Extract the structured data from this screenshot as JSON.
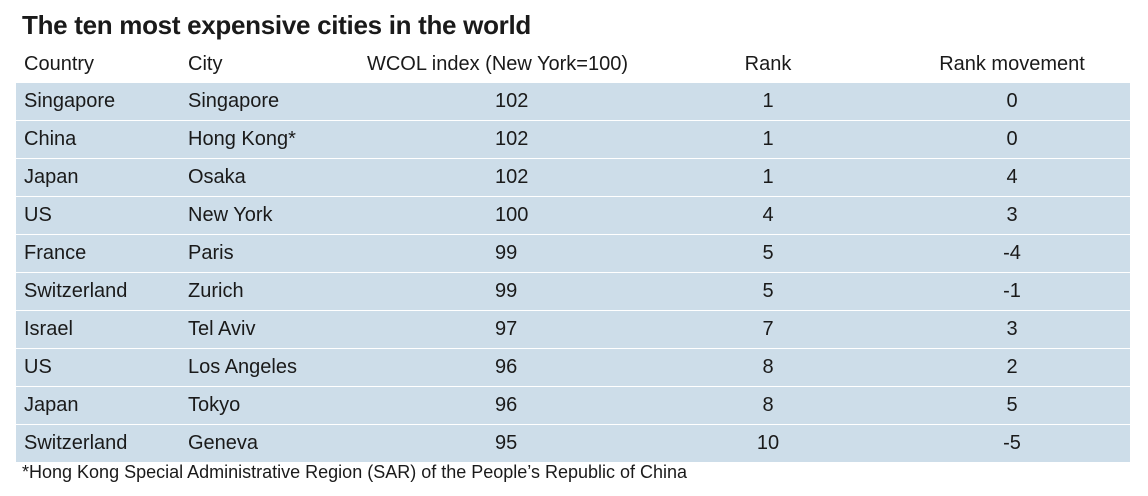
{
  "chart_data": {
    "type": "table",
    "title": "The ten most expensive cities in the world",
    "columns": [
      "Country",
      "City",
      "WCOL index (New York=100)",
      "Rank",
      "Rank movement"
    ],
    "rows": [
      [
        "Singapore",
        "Singapore",
        "102",
        "1",
        "0"
      ],
      [
        "China",
        "Hong Kong*",
        "102",
        "1",
        "0"
      ],
      [
        "Japan",
        "Osaka",
        "102",
        "1",
        "4"
      ],
      [
        "US",
        "New York",
        "100",
        "4",
        "3"
      ],
      [
        "France",
        "Paris",
        "99",
        "5",
        "-4"
      ],
      [
        "Switzerland",
        "Zurich",
        "99",
        "5",
        "-1"
      ],
      [
        "Israel",
        "Tel Aviv",
        "97",
        "7",
        "3"
      ],
      [
        "US",
        "Los Angeles",
        "96",
        "8",
        "2"
      ],
      [
        "Japan",
        "Tokyo",
        "96",
        "8",
        "5"
      ],
      [
        "Switzerland",
        "Geneva",
        "95",
        "10",
        "-5"
      ]
    ],
    "footnote": "*Hong Kong Special Administrative Region (SAR) of the People’s Republic of China"
  },
  "colors": {
    "row_background": "#cddde9",
    "text": "#1a1a1a"
  }
}
